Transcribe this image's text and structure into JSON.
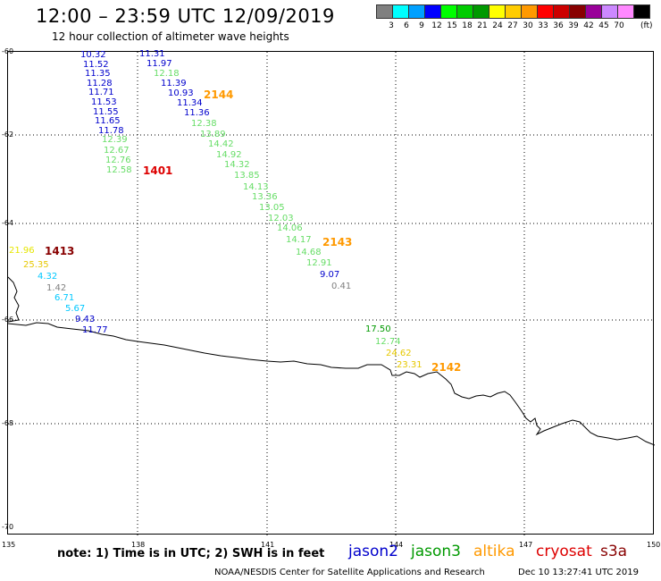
{
  "title": "12:00 – 23:59 UTC 12/09/2019",
  "subtitle": "12 hour collection of altimeter wave heights",
  "color_scale": {
    "unit": "(ft)",
    "swatches": [
      {
        "label": "3",
        "color": "#808080"
      },
      {
        "label": "6",
        "color": "#00ffff"
      },
      {
        "label": "9",
        "color": "#00a0ff"
      },
      {
        "label": "12",
        "color": "#0000ff"
      },
      {
        "label": "15",
        "color": "#00ff00"
      },
      {
        "label": "18",
        "color": "#00cc00"
      },
      {
        "label": "21",
        "color": "#009900"
      },
      {
        "label": "24",
        "color": "#ffff00"
      },
      {
        "label": "27",
        "color": "#ffcc00"
      },
      {
        "label": "30",
        "color": "#ff9900"
      },
      {
        "label": "33",
        "color": "#ff0000"
      },
      {
        "label": "36",
        "color": "#cc0000"
      },
      {
        "label": "39",
        "color": "#880000"
      },
      {
        "label": "42",
        "color": "#990099"
      },
      {
        "label": "45",
        "color": "#cc88ff"
      },
      {
        "label": "70",
        "color": "#ff88ff"
      },
      {
        "label": "",
        "color": "#000000"
      }
    ]
  },
  "map": {
    "lat_labels": [
      "-60",
      "-62",
      "-64",
      "-66",
      "-68",
      "-70"
    ],
    "lon_labels": [
      "135",
      "138",
      "141",
      "144",
      "147",
      "150"
    ]
  },
  "observations": [
    {
      "v": "10.32",
      "c": "#0000cc"
    },
    {
      "v": "11.52",
      "c": "#0000cc"
    },
    {
      "v": "11.35",
      "c": "#0000cc"
    },
    {
      "v": "11.28",
      "c": "#0000cc"
    },
    {
      "v": "11.71",
      "c": "#0000cc"
    },
    {
      "v": "11.53",
      "c": "#0000cc"
    },
    {
      "v": "11.55",
      "c": "#0000cc"
    },
    {
      "v": "11.65",
      "c": "#0000cc"
    },
    {
      "v": "11.78",
      "c": "#0000cc"
    },
    {
      "v": "12.39",
      "c": "#66dd66"
    },
    {
      "v": "12.67",
      "c": "#66dd66"
    },
    {
      "v": "12.76",
      "c": "#66dd66"
    },
    {
      "v": "12.58",
      "c": "#66dd66"
    },
    {
      "v": "11.31",
      "c": "#0000cc"
    },
    {
      "v": "11.97",
      "c": "#0000cc"
    },
    {
      "v": "12.18",
      "c": "#66dd66"
    },
    {
      "v": "11.39",
      "c": "#0000cc"
    },
    {
      "v": "10.93",
      "c": "#0000cc"
    },
    {
      "v": "11.34",
      "c": "#0000cc"
    },
    {
      "v": "11.36",
      "c": "#0000cc"
    },
    {
      "v": "12.38",
      "c": "#66dd66"
    },
    {
      "v": "13.89",
      "c": "#66dd66"
    },
    {
      "v": "14.42",
      "c": "#66dd66"
    },
    {
      "v": "14.92",
      "c": "#66dd66"
    },
    {
      "v": "14.32",
      "c": "#66dd66"
    },
    {
      "v": "13.85",
      "c": "#66dd66"
    },
    {
      "v": "14.13",
      "c": "#66dd66"
    },
    {
      "v": "13.36",
      "c": "#66dd66"
    },
    {
      "v": "13.05",
      "c": "#66dd66"
    },
    {
      "v": "12.03",
      "c": "#66dd66"
    },
    {
      "v": "14.06",
      "c": "#66dd66"
    },
    {
      "v": "14.17",
      "c": "#66dd66"
    },
    {
      "v": "14.68",
      "c": "#66dd66"
    },
    {
      "v": "12.91",
      "c": "#66dd66"
    },
    {
      "v": "9.07",
      "c": "#0000cc"
    },
    {
      "v": "0.41",
      "c": "#808080"
    },
    {
      "v": "21.96",
      "c": "#e6e600"
    },
    {
      "v": "25.35",
      "c": "#e6c800"
    },
    {
      "v": "4.32",
      "c": "#00c8ff"
    },
    {
      "v": "1.42",
      "c": "#808080"
    },
    {
      "v": "6.71",
      "c": "#00c8ff"
    },
    {
      "v": "5.67",
      "c": "#00c8ff"
    },
    {
      "v": "9.43",
      "c": "#0000cc"
    },
    {
      "v": "11.77",
      "c": "#0000cc"
    },
    {
      "v": "17.50",
      "c": "#009900"
    },
    {
      "v": "12.74",
      "c": "#66dd66"
    },
    {
      "v": "24.62",
      "c": "#e6c800"
    },
    {
      "v": "23.31",
      "c": "#e6c800"
    }
  ],
  "pass_labels": [
    {
      "v": "1401",
      "c": "#dd0000"
    },
    {
      "v": "2144",
      "c": "#ff9900"
    },
    {
      "v": "1413",
      "c": "#880000"
    },
    {
      "v": "2143",
      "c": "#ff9900"
    },
    {
      "v": "2142",
      "c": "#ff9900"
    }
  ],
  "footer": {
    "note": "note:  1) Time is in UTC;  2) SWH is in feet",
    "satellites": [
      {
        "name": "jason2",
        "color": "#0000cc"
      },
      {
        "name": "jason3",
        "color": "#009900"
      },
      {
        "name": "altika",
        "color": "#ff9900"
      },
      {
        "name": "cryosat",
        "color": "#dd0000"
      },
      {
        "name": "s3a",
        "color": "#880000"
      }
    ],
    "credit": "NOAA/NESDIS Center for Satellite Applications and Research",
    "timestamp": "Dec 10 13:27:41 UTC 2019"
  }
}
